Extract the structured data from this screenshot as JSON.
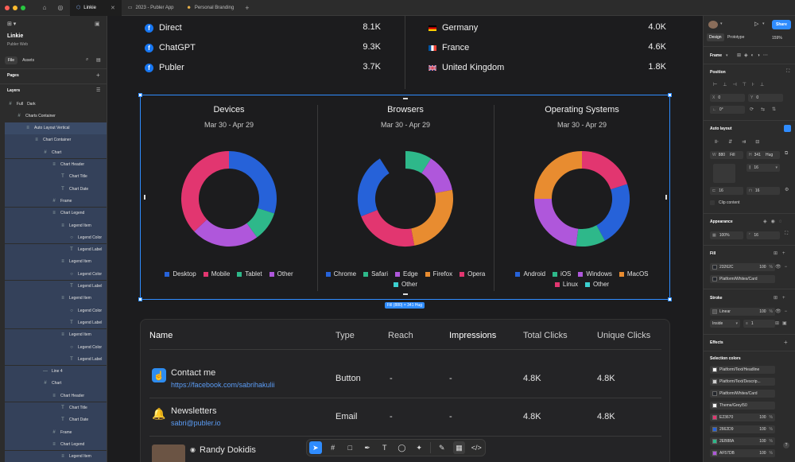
{
  "titlebar": {
    "tabs": [
      {
        "label": "Linkie",
        "active": true
      },
      {
        "label": "2023 - Publer App",
        "active": false
      },
      {
        "label": "Personal Branding",
        "active": false
      }
    ]
  },
  "left_panel": {
    "project_title": "Linkie",
    "project_sub": "Publer Web",
    "file_tab": "File",
    "assets_tab": "Assets",
    "pages_label": "Pages",
    "layers_label": "Layers",
    "layers": [
      {
        "label": "Full",
        "label2": "Dark",
        "indent": 0,
        "glyph": "#",
        "sel": ""
      },
      {
        "label": "Charts Container",
        "indent": 1,
        "glyph": "#",
        "sel": ""
      },
      {
        "label": "Auto Layout Vertical",
        "indent": 2,
        "glyph": "≡",
        "sel": "sel"
      },
      {
        "label": "Chart Container",
        "indent": 3,
        "glyph": "≡",
        "sel": "sel2"
      },
      {
        "label": "Chart",
        "indent": 4,
        "glyph": "#",
        "sel": "sel2"
      },
      {
        "label": "Chart Header",
        "indent": 5,
        "glyph": "≡",
        "sel": "sel2"
      },
      {
        "label": "Chart Title",
        "indent": 6,
        "glyph": "T",
        "sel": "sel2"
      },
      {
        "label": "Chart Date",
        "indent": 6,
        "glyph": "T",
        "sel": "sel2"
      },
      {
        "label": "Frame",
        "indent": 5,
        "glyph": "#",
        "sel": "sel2"
      },
      {
        "label": "Chart Legend",
        "indent": 5,
        "glyph": "≡",
        "sel": "sel2"
      },
      {
        "label": "Legend Item",
        "indent": 6,
        "glyph": "≡",
        "sel": "sel2"
      },
      {
        "label": "Legend Color",
        "indent": 7,
        "glyph": "○",
        "sel": "sel2"
      },
      {
        "label": "Legend Label",
        "indent": 7,
        "glyph": "T",
        "sel": "sel2"
      },
      {
        "label": "Legend Item",
        "indent": 6,
        "glyph": "≡",
        "sel": "sel2"
      },
      {
        "label": "Legend Color",
        "indent": 7,
        "glyph": "○",
        "sel": "sel2"
      },
      {
        "label": "Legend Label",
        "indent": 7,
        "glyph": "T",
        "sel": "sel2"
      },
      {
        "label": "Legend Item",
        "indent": 6,
        "glyph": "≡",
        "sel": "sel2"
      },
      {
        "label": "Legend Color",
        "indent": 7,
        "glyph": "○",
        "sel": "sel2"
      },
      {
        "label": "Legend Label",
        "indent": 7,
        "glyph": "T",
        "sel": "sel2"
      },
      {
        "label": "Legend Item",
        "indent": 6,
        "glyph": "≡",
        "sel": "sel2"
      },
      {
        "label": "Legend Color",
        "indent": 7,
        "glyph": "○",
        "sel": "sel2"
      },
      {
        "label": "Legend Label",
        "indent": 7,
        "glyph": "T",
        "sel": "sel2"
      },
      {
        "label": "Line 4",
        "indent": 4,
        "glyph": "—",
        "sel": "sel2"
      },
      {
        "label": "Chart",
        "indent": 4,
        "glyph": "#",
        "sel": "sel2"
      },
      {
        "label": "Chart Header",
        "indent": 5,
        "glyph": "≡",
        "sel": "sel2"
      },
      {
        "label": "Chart Title",
        "indent": 6,
        "glyph": "T",
        "sel": "sel2"
      },
      {
        "label": "Chart Date",
        "indent": 6,
        "glyph": "T",
        "sel": "sel2"
      },
      {
        "label": "Frame",
        "indent": 5,
        "glyph": "#",
        "sel": "sel2"
      },
      {
        "label": "Chart Legend",
        "indent": 5,
        "glyph": "≡",
        "sel": "sel2"
      },
      {
        "label": "Legend Item",
        "indent": 6,
        "glyph": "≡",
        "sel": "sel2"
      }
    ]
  },
  "stats": {
    "sources": [
      {
        "name": "Direct",
        "value": "8.1K"
      },
      {
        "name": "ChatGPT",
        "value": "9.3K"
      },
      {
        "name": "Publer",
        "value": "3.7K"
      }
    ],
    "countries": [
      {
        "name": "Germany",
        "value": "4.0K",
        "flag": "de"
      },
      {
        "name": "France",
        "value": "4.6K",
        "flag": "fr"
      },
      {
        "name": "United Kingdom",
        "value": "1.8K",
        "flag": "uk"
      }
    ]
  },
  "chart_data": [
    {
      "type": "pie",
      "title": "Devices",
      "subtitle": "Mar 30 - Apr 29",
      "categories": [
        "Desktop",
        "Mobile",
        "Tablet",
        "Other"
      ],
      "values": [
        30,
        37,
        10,
        23
      ],
      "colors": [
        "#2662D9",
        "#E23670",
        "#2EB88A",
        "#AF57DB"
      ],
      "order": [
        0,
        2,
        3,
        1
      ],
      "legend": "bottom"
    },
    {
      "type": "pie",
      "title": "Browsers",
      "subtitle": "Mar 30 - Apr 29",
      "categories": [
        "Chrome",
        "Safari",
        "Edge",
        "Firefox",
        "Opera",
        "Other"
      ],
      "values": [
        22,
        9,
        13,
        25,
        22,
        9
      ],
      "colors": [
        "#2662D9",
        "#2EB88A",
        "#AF57DB",
        "#E88C30",
        "#E23670",
        "#3CCFCF"
      ],
      "order": [
        1,
        2,
        3,
        4,
        0
      ],
      "legend": "bottom"
    },
    {
      "type": "pie",
      "title": "Operating Systems",
      "subtitle": "Mar 30 - Apr 29",
      "categories": [
        "Android",
        "iOS",
        "Windows",
        "MacOS",
        "Linux",
        "Other"
      ],
      "values": [
        22,
        10,
        23,
        25,
        20,
        0
      ],
      "colors": [
        "#2662D9",
        "#2EB88A",
        "#AF57DB",
        "#E88C30",
        "#E23670",
        "#3CCFCF"
      ],
      "order": [
        4,
        0,
        1,
        2,
        3
      ],
      "legend": "bottom"
    }
  ],
  "selection_label": "Fill (880) × 341 Hug",
  "table": {
    "headers": [
      "Name",
      "Type",
      "Reach",
      "Impressions",
      "Total Clicks",
      "Unique Clicks"
    ],
    "rows": [
      {
        "name": "Contact me",
        "link": "https://facebook.com/sabrihakulii",
        "type": "Button",
        "reach": "-",
        "impressions": "-",
        "total": "4.8K",
        "unique": "4.8K"
      },
      {
        "name": "Newsletters",
        "link": "sabri@publer.io",
        "type": "Email",
        "reach": "-",
        "impressions": "-",
        "total": "4.8K",
        "unique": "4.8K"
      },
      {
        "name": "Randy Dokidis"
      }
    ]
  },
  "right_panel": {
    "share": "Share",
    "design_tab": "Design",
    "prototype_tab": "Prototype",
    "zoom": "159%",
    "frame_label": "Frame",
    "position": "Position",
    "x": "0",
    "y": "0",
    "rotation": "0°",
    "auto_layout": "Auto layout",
    "w": "880",
    "w_mode": "Fill",
    "h": "341",
    "h_mode": "Hug",
    "gap": "16",
    "pad_h": "16",
    "pad_v": "16",
    "clip": "Clip content",
    "appearance": "Appearance",
    "opacity": "100%",
    "radius": "16",
    "fill": "Fill",
    "fill_hex": "23262C",
    "fill_pct": "100",
    "fill_style": "Platform/Whites/Card",
    "stroke": "Stroke",
    "stroke_type": "Linear",
    "stroke_pos": "Inside",
    "stroke_w": "1",
    "effects": "Effects",
    "selection_colors": "Selection colors",
    "sel_colors": [
      {
        "label": "Platform/Text/Headline",
        "pct": "",
        "color": "#ffffff"
      },
      {
        "label": "Platform/Text/Descrip...",
        "pct": "",
        "color": "#cfcfcf"
      },
      {
        "label": "Platform/Whites/Card",
        "pct": "",
        "color": "#23262C"
      },
      {
        "label": "Theme/Grey/50",
        "pct": "",
        "color": "#f5f5f5"
      },
      {
        "label": "E23670",
        "pct": "100",
        "color": "#E23670"
      },
      {
        "label": "2662D9",
        "pct": "100",
        "color": "#2662D9"
      },
      {
        "label": "2EB88A",
        "pct": "100",
        "color": "#2EB88A"
      },
      {
        "label": "AF57DB",
        "pct": "100",
        "color": "#AF57DB"
      }
    ]
  }
}
